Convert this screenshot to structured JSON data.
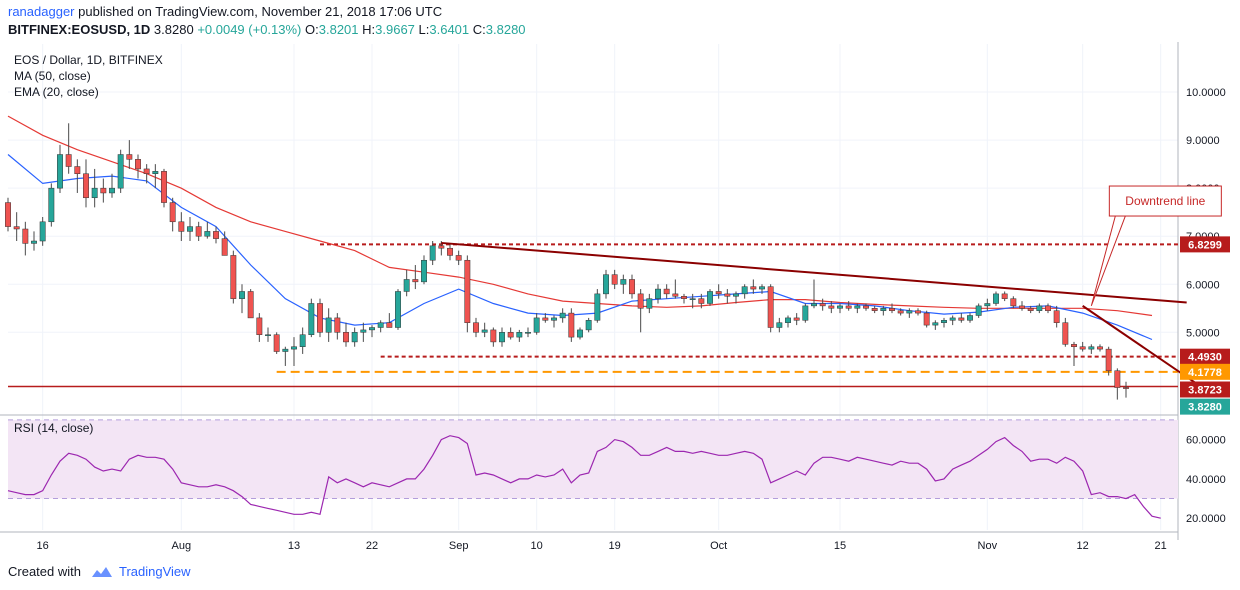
{
  "header": {
    "author": "ranadagger",
    "published_text": "published on TradingView.com, November 21, 2018 17:06 UTC",
    "symbol": "BITFINEX:EOSUSD, 1D",
    "last": "3.8280",
    "change": "+0.0049 (+0.13%)",
    "o_label": "O:",
    "o_value": "3.8201",
    "h_label": "H:",
    "h_value": "3.9667",
    "l_label": "L:",
    "l_value": "3.6401",
    "c_label": "C:",
    "c_value": "3.8280"
  },
  "footer": {
    "created_with": "Created with",
    "brand": "TradingView"
  },
  "colors": {
    "up": "#26a69a",
    "down": "#ef5350",
    "ma50": "#e53935",
    "ema20": "#2962ff",
    "trend": "#8b0000",
    "level": "#b71c1c",
    "support_dash": "#ff9800",
    "rsi_line": "#9c27b0",
    "rsi_fill": "#f3e5f5",
    "grid": "#f0f3fa"
  },
  "chart_data": [
    {
      "type": "candlestick",
      "title": "EOS / Dollar, 1D, BITFINEX",
      "indicator_labels": [
        "MA (50, close)",
        "EMA (20, close)"
      ],
      "ylim": [
        3.3,
        11.0
      ],
      "y_ticks": [
        "10.0000",
        "9.0000",
        "8.0000",
        "7.0000",
        "6.0000",
        "5.0000"
      ],
      "x_ticks": [
        {
          "label": "16",
          "x": 4
        },
        {
          "label": "Aug",
          "x": 20
        },
        {
          "label": "13",
          "x": 33
        },
        {
          "label": "22",
          "x": 42
        },
        {
          "label": "Sep",
          "x": 52
        },
        {
          "label": "10",
          "x": 61
        },
        {
          "label": "19",
          "x": 70
        },
        {
          "label": "Oct",
          "x": 82
        },
        {
          "label": "15",
          "x": 96
        },
        {
          "label": "Nov",
          "x": 113
        },
        {
          "label": "12",
          "x": 124
        },
        {
          "label": "21",
          "x": 133
        }
      ],
      "candles": [
        [
          7.7,
          7.8,
          7.1,
          7.2
        ],
        [
          7.2,
          7.5,
          6.9,
          7.15
        ],
        [
          7.15,
          7.3,
          6.6,
          6.85
        ],
        [
          6.85,
          7.1,
          6.7,
          6.9
        ],
        [
          6.9,
          7.4,
          6.8,
          7.3
        ],
        [
          7.3,
          8.1,
          7.2,
          8.0
        ],
        [
          8.0,
          8.9,
          7.9,
          8.7
        ],
        [
          8.7,
          9.35,
          8.3,
          8.45
        ],
        [
          8.45,
          8.6,
          7.9,
          8.3
        ],
        [
          8.3,
          8.6,
          7.6,
          7.8
        ],
        [
          7.8,
          8.4,
          7.6,
          8.0
        ],
        [
          8.0,
          8.2,
          7.7,
          7.9
        ],
        [
          7.9,
          8.3,
          7.8,
          8.0
        ],
        [
          8.0,
          8.8,
          7.9,
          8.7
        ],
        [
          8.7,
          9.0,
          8.4,
          8.6
        ],
        [
          8.6,
          8.7,
          8.2,
          8.4
        ],
        [
          8.4,
          8.5,
          8.1,
          8.3
        ],
        [
          8.3,
          8.5,
          8.0,
          8.35
        ],
        [
          8.35,
          8.4,
          7.6,
          7.7
        ],
        [
          7.7,
          7.8,
          7.1,
          7.3
        ],
        [
          7.3,
          7.5,
          6.9,
          7.1
        ],
        [
          7.1,
          7.4,
          6.9,
          7.2
        ],
        [
          7.2,
          7.3,
          6.9,
          7.0
        ],
        [
          7.0,
          7.3,
          6.95,
          7.1
        ],
        [
          7.1,
          7.2,
          6.85,
          6.95
        ],
        [
          6.95,
          7.1,
          6.6,
          6.6
        ],
        [
          6.6,
          6.7,
          5.6,
          5.7
        ],
        [
          5.7,
          6.0,
          5.4,
          5.85
        ],
        [
          5.85,
          5.9,
          5.3,
          5.3
        ],
        [
          5.3,
          5.4,
          4.8,
          4.95
        ],
        [
          4.95,
          5.1,
          4.8,
          4.95
        ],
        [
          4.95,
          5.0,
          4.55,
          4.6
        ],
        [
          4.6,
          4.7,
          4.3,
          4.65
        ],
        [
          4.65,
          4.9,
          4.3,
          4.7
        ],
        [
          4.7,
          5.1,
          4.55,
          4.95
        ],
        [
          4.95,
          5.7,
          4.9,
          5.6
        ],
        [
          5.6,
          5.7,
          4.9,
          5.0
        ],
        [
          5.0,
          5.5,
          4.8,
          5.3
        ],
        [
          5.3,
          5.4,
          4.85,
          5.0
        ],
        [
          5.0,
          5.2,
          4.7,
          4.8
        ],
        [
          4.8,
          5.1,
          4.7,
          5.0
        ],
        [
          5.0,
          5.2,
          4.8,
          5.05
        ],
        [
          5.05,
          5.15,
          4.9,
          5.1
        ],
        [
          5.1,
          5.25,
          5.0,
          5.2
        ],
        [
          5.2,
          5.4,
          5.1,
          5.1
        ],
        [
          5.1,
          5.9,
          5.05,
          5.85
        ],
        [
          5.85,
          6.3,
          5.75,
          6.1
        ],
        [
          6.1,
          6.4,
          5.9,
          6.05
        ],
        [
          6.05,
          6.6,
          6.0,
          6.5
        ],
        [
          6.5,
          6.9,
          6.4,
          6.8
        ],
        [
          6.8,
          6.9,
          6.6,
          6.75
        ],
        [
          6.75,
          6.85,
          6.5,
          6.6
        ],
        [
          6.6,
          6.7,
          6.4,
          6.5
        ],
        [
          6.5,
          6.6,
          5.0,
          5.2
        ],
        [
          5.2,
          5.3,
          4.9,
          5.0
        ],
        [
          5.0,
          5.2,
          4.9,
          5.05
        ],
        [
          5.05,
          5.1,
          4.7,
          4.8
        ],
        [
          4.8,
          5.1,
          4.7,
          5.0
        ],
        [
          5.0,
          5.1,
          4.85,
          4.9
        ],
        [
          4.9,
          5.05,
          4.8,
          5.0
        ],
        [
          5.0,
          5.1,
          4.9,
          5.0
        ],
        [
          5.0,
          5.4,
          4.95,
          5.3
        ],
        [
          5.3,
          5.4,
          5.2,
          5.25
        ],
        [
          5.25,
          5.35,
          5.1,
          5.3
        ],
        [
          5.3,
          5.5,
          5.2,
          5.4
        ],
        [
          5.4,
          5.5,
          4.8,
          4.9
        ],
        [
          4.9,
          5.1,
          4.85,
          5.05
        ],
        [
          5.05,
          5.3,
          5.0,
          5.25
        ],
        [
          5.25,
          5.9,
          5.2,
          5.8
        ],
        [
          5.8,
          6.3,
          5.7,
          6.2
        ],
        [
          6.2,
          6.3,
          5.9,
          6.0
        ],
        [
          6.0,
          6.2,
          5.8,
          6.1
        ],
        [
          6.1,
          6.2,
          5.7,
          5.8
        ],
        [
          5.8,
          5.9,
          5.0,
          5.5
        ],
        [
          5.5,
          5.8,
          5.4,
          5.7
        ],
        [
          5.7,
          6.0,
          5.6,
          5.9
        ],
        [
          5.9,
          6.0,
          5.7,
          5.8
        ],
        [
          5.8,
          6.1,
          5.7,
          5.75
        ],
        [
          5.75,
          5.8,
          5.6,
          5.7
        ],
        [
          5.7,
          5.8,
          5.5,
          5.7
        ],
        [
          5.7,
          5.8,
          5.5,
          5.6
        ],
        [
          5.6,
          5.9,
          5.55,
          5.85
        ],
        [
          5.85,
          6.0,
          5.7,
          5.8
        ],
        [
          5.8,
          5.9,
          5.6,
          5.75
        ],
        [
          5.75,
          5.85,
          5.6,
          5.8
        ],
        [
          5.8,
          6.0,
          5.7,
          5.95
        ],
        [
          5.95,
          6.1,
          5.8,
          5.9
        ],
        [
          5.9,
          6.0,
          5.8,
          5.95
        ],
        [
          5.95,
          6.0,
          5.0,
          5.1
        ],
        [
          5.1,
          5.3,
          5.0,
          5.2
        ],
        [
          5.2,
          5.35,
          5.1,
          5.3
        ],
        [
          5.3,
          5.4,
          5.15,
          5.25
        ],
        [
          5.25,
          5.6,
          5.2,
          5.55
        ],
        [
          5.55,
          6.1,
          5.5,
          5.6
        ],
        [
          5.6,
          5.7,
          5.45,
          5.55
        ],
        [
          5.55,
          5.65,
          5.4,
          5.5
        ],
        [
          5.5,
          5.6,
          5.4,
          5.55
        ],
        [
          5.55,
          5.65,
          5.45,
          5.5
        ],
        [
          5.5,
          5.6,
          5.4,
          5.55
        ],
        [
          5.55,
          5.6,
          5.45,
          5.5
        ],
        [
          5.5,
          5.55,
          5.4,
          5.45
        ],
        [
          5.45,
          5.55,
          5.35,
          5.5
        ],
        [
          5.5,
          5.6,
          5.4,
          5.45
        ],
        [
          5.45,
          5.5,
          5.35,
          5.4
        ],
        [
          5.4,
          5.5,
          5.3,
          5.45
        ],
        [
          5.45,
          5.5,
          5.35,
          5.4
        ],
        [
          5.4,
          5.45,
          5.1,
          5.15
        ],
        [
          5.15,
          5.25,
          5.05,
          5.2
        ],
        [
          5.2,
          5.3,
          5.1,
          5.25
        ],
        [
          5.25,
          5.35,
          5.15,
          5.3
        ],
        [
          5.3,
          5.4,
          5.2,
          5.25
        ],
        [
          5.25,
          5.4,
          5.2,
          5.35
        ],
        [
          5.35,
          5.6,
          5.3,
          5.55
        ],
        [
          5.55,
          5.7,
          5.45,
          5.6
        ],
        [
          5.6,
          5.85,
          5.55,
          5.8
        ],
        [
          5.8,
          5.85,
          5.65,
          5.7
        ],
        [
          5.7,
          5.75,
          5.5,
          5.55
        ],
        [
          5.55,
          5.65,
          5.45,
          5.5
        ],
        [
          5.5,
          5.55,
          5.4,
          5.45
        ],
        [
          5.45,
          5.6,
          5.4,
          5.55
        ],
        [
          5.55,
          5.6,
          5.4,
          5.45
        ],
        [
          5.45,
          5.55,
          5.1,
          5.2
        ],
        [
          5.2,
          5.3,
          4.7,
          4.75
        ],
        [
          4.75,
          4.8,
          4.3,
          4.7
        ],
        [
          4.7,
          4.8,
          4.6,
          4.65
        ],
        [
          4.65,
          4.75,
          4.55,
          4.7
        ],
        [
          4.7,
          4.75,
          4.6,
          4.65
        ],
        [
          4.65,
          4.7,
          4.1,
          4.2
        ],
        [
          4.2,
          4.25,
          3.6,
          3.85
        ],
        [
          3.85,
          3.97,
          3.64,
          3.83
        ]
      ],
      "ema20": [
        [
          0,
          8.7
        ],
        [
          4,
          8.1
        ],
        [
          8,
          8.2
        ],
        [
          12,
          8.25
        ],
        [
          16,
          8.15
        ],
        [
          20,
          7.6
        ],
        [
          24,
          7.2
        ],
        [
          28,
          6.4
        ],
        [
          32,
          5.7
        ],
        [
          36,
          5.3
        ],
        [
          40,
          5.15
        ],
        [
          44,
          5.2
        ],
        [
          48,
          5.6
        ],
        [
          52,
          5.9
        ],
        [
          56,
          5.6
        ],
        [
          60,
          5.4
        ],
        [
          64,
          5.35
        ],
        [
          68,
          5.4
        ],
        [
          72,
          5.65
        ],
        [
          76,
          5.7
        ],
        [
          80,
          5.75
        ],
        [
          84,
          5.8
        ],
        [
          88,
          5.85
        ],
        [
          92,
          5.6
        ],
        [
          96,
          5.6
        ],
        [
          100,
          5.55
        ],
        [
          104,
          5.45
        ],
        [
          108,
          5.38
        ],
        [
          112,
          5.42
        ],
        [
          116,
          5.52
        ],
        [
          120,
          5.55
        ],
        [
          124,
          5.4
        ],
        [
          128,
          5.15
        ],
        [
          132,
          4.85
        ]
      ],
      "ma50": [
        [
          0,
          9.5
        ],
        [
          4,
          9.1
        ],
        [
          8,
          8.8
        ],
        [
          12,
          8.55
        ],
        [
          16,
          8.3
        ],
        [
          20,
          8.0
        ],
        [
          24,
          7.6
        ],
        [
          28,
          7.3
        ],
        [
          32,
          7.1
        ],
        [
          36,
          6.9
        ],
        [
          40,
          6.7
        ],
        [
          44,
          6.35
        ],
        [
          48,
          6.25
        ],
        [
          52,
          6.15
        ],
        [
          56,
          6.0
        ],
        [
          60,
          5.8
        ],
        [
          64,
          5.65
        ],
        [
          68,
          5.6
        ],
        [
          72,
          5.55
        ],
        [
          76,
          5.52
        ],
        [
          80,
          5.55
        ],
        [
          84,
          5.62
        ],
        [
          88,
          5.68
        ],
        [
          92,
          5.68
        ],
        [
          96,
          5.62
        ],
        [
          100,
          5.58
        ],
        [
          104,
          5.55
        ],
        [
          108,
          5.52
        ],
        [
          112,
          5.5
        ],
        [
          116,
          5.5
        ],
        [
          120,
          5.5
        ],
        [
          124,
          5.5
        ],
        [
          128,
          5.45
        ],
        [
          132,
          5.35
        ]
      ],
      "trendlines": [
        {
          "from": [
            50,
            6.86
          ],
          "to": [
            136,
            5.62
          ]
        },
        {
          "from": [
            124,
            5.55
          ],
          "to": [
            137,
            3.95
          ]
        }
      ],
      "levels": [
        {
          "value": 6.8299,
          "from": 36,
          "style": "dotted",
          "label": "6.8299"
        },
        {
          "value": 4.493,
          "from": 43,
          "style": "dotted",
          "label": "4.4930"
        },
        {
          "value": 4.1778,
          "from": 31,
          "style": "dashed",
          "label": "4.1778"
        },
        {
          "value": 3.8723,
          "from": 0,
          "style": "solid",
          "label": "3.8723"
        },
        {
          "value": 3.828,
          "from": 0,
          "style": "none",
          "label": "3.8280"
        }
      ],
      "annotation": {
        "text": "Downtrend line",
        "box_x": 128,
        "box_y": 7.42,
        "target_x": 125,
        "target_y": 5.55
      }
    },
    {
      "type": "line",
      "title": "RSI (14, close)",
      "ylim": [
        14,
        72
      ],
      "band": [
        30,
        70
      ],
      "y_ticks": [
        "60.0000",
        "40.0000",
        "20.0000"
      ],
      "values": [
        34,
        33,
        32,
        32,
        34,
        42,
        49,
        53,
        52,
        50,
        46,
        44,
        45,
        44,
        50,
        52,
        51,
        51,
        50,
        45,
        38,
        37,
        36,
        36,
        37,
        36,
        34,
        31,
        27,
        26,
        25,
        24,
        23,
        22,
        22,
        23,
        22,
        41,
        38,
        40,
        38,
        36,
        38,
        37,
        36,
        38,
        40,
        40,
        45,
        52,
        60,
        62,
        61,
        58,
        42,
        43,
        42,
        40,
        38,
        40,
        40,
        42,
        41,
        42,
        45,
        38,
        42,
        43,
        54,
        56,
        60,
        59,
        56,
        52,
        52,
        54,
        56,
        54,
        54,
        53,
        54,
        53,
        52,
        52,
        53,
        54,
        53,
        50,
        38,
        40,
        42,
        44,
        42,
        48,
        51,
        51,
        50,
        49,
        51,
        50,
        49,
        48,
        47,
        49,
        48,
        48,
        45,
        39,
        40,
        45,
        47,
        49,
        52,
        55,
        59,
        61,
        57,
        54,
        49,
        50,
        50,
        48,
        51,
        49,
        44,
        32,
        33,
        31,
        31,
        30,
        32,
        26,
        21,
        20
      ]
    }
  ]
}
